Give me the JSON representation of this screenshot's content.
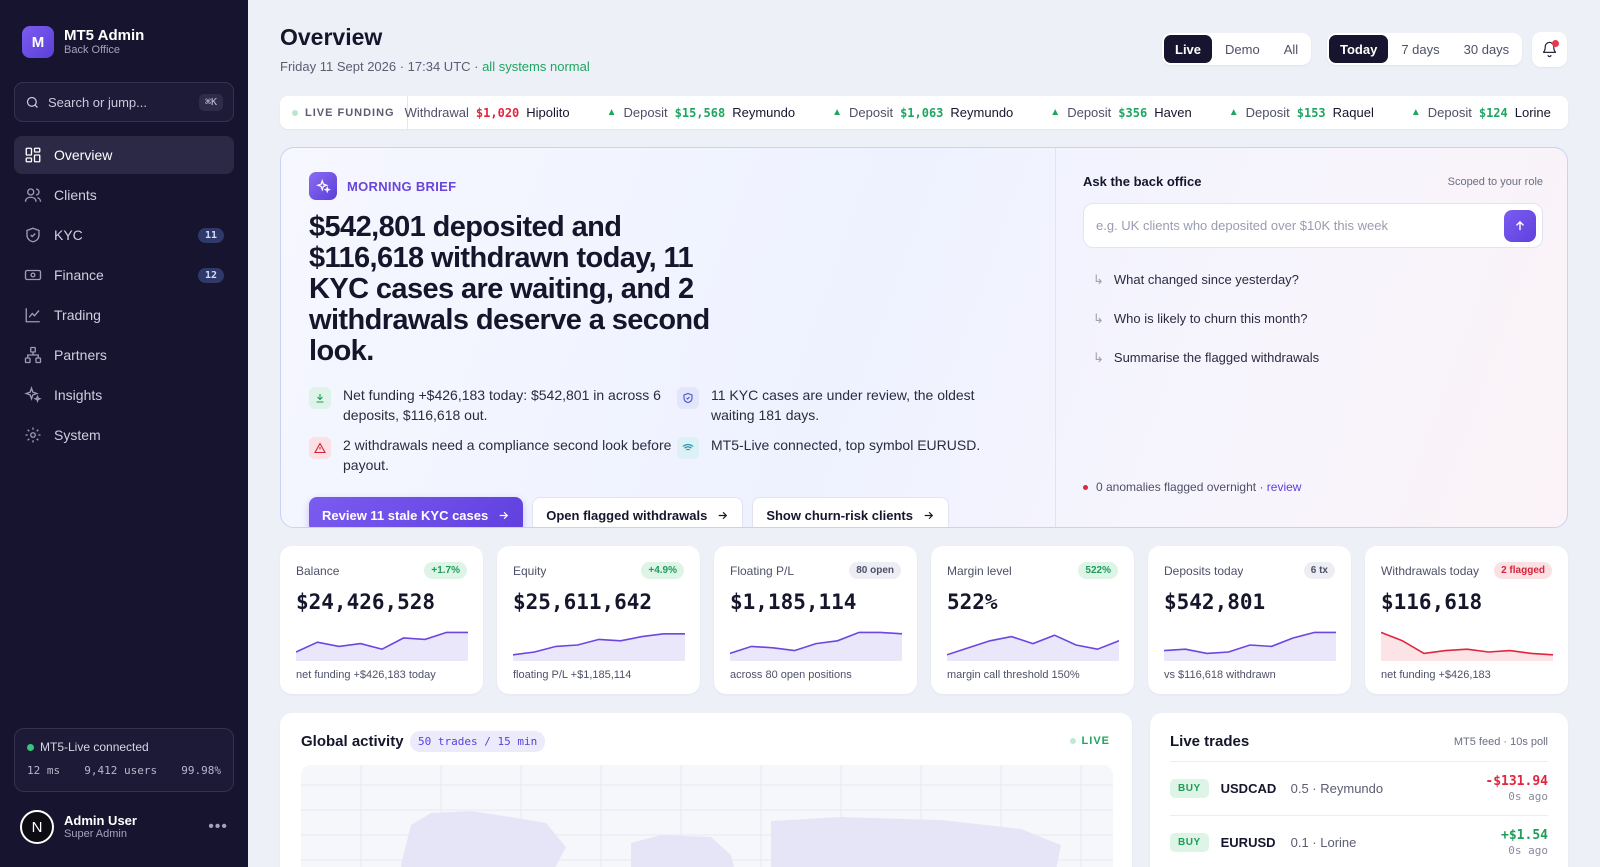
{
  "brand": {
    "logo_letter": "M",
    "title": "MT5 Admin",
    "subtitle": "Back Office"
  },
  "search": {
    "placeholder": "Search or jump...",
    "shortcut": "⌘K"
  },
  "nav": [
    {
      "label": "Overview",
      "icon": "grid-icon",
      "active": true
    },
    {
      "label": "Clients",
      "icon": "users-icon"
    },
    {
      "label": "KYC",
      "icon": "shield-icon",
      "count": "11"
    },
    {
      "label": "Finance",
      "icon": "banknote-icon",
      "count": "12"
    },
    {
      "label": "Trading",
      "icon": "chart-line-icon"
    },
    {
      "label": "Partners",
      "icon": "network-icon"
    },
    {
      "label": "Insights",
      "icon": "sparkles-icon"
    },
    {
      "label": "System",
      "icon": "gear-icon"
    }
  ],
  "connection": {
    "status": "MT5-Live connected",
    "latency": "12 ms",
    "users": "9,412 users",
    "uptime": "99.98%"
  },
  "user": {
    "initial": "N",
    "name": "Admin User",
    "role": "Super Admin"
  },
  "header": {
    "title": "Overview",
    "date": "Friday 11 Sept 2026 · 17:34 UTC · ",
    "status": "all systems normal",
    "env_options": [
      "Live",
      "Demo",
      "All"
    ],
    "env_selected": "Live",
    "range_options": [
      "Today",
      "7 days",
      "30 days"
    ],
    "range_selected": "Today"
  },
  "ticker": {
    "label": "LIVE FUNDING",
    "items": [
      {
        "type": "Withdrawal",
        "amount": "$1,020",
        "name": "Hipolito",
        "direction": "out"
      },
      {
        "type": "Deposit",
        "amount": "$15,568",
        "name": "Reymundo",
        "direction": "in"
      },
      {
        "type": "Deposit",
        "amount": "$1,063",
        "name": "Reymundo",
        "direction": "in"
      },
      {
        "type": "Deposit",
        "amount": "$356",
        "name": "Haven",
        "direction": "in"
      },
      {
        "type": "Deposit",
        "amount": "$153",
        "name": "Raquel",
        "direction": "in"
      },
      {
        "type": "Deposit",
        "amount": "$124",
        "name": "Lorine",
        "direction": "in"
      }
    ]
  },
  "brief": {
    "tag": "MORNING BRIEF",
    "headline": "$542,801 deposited and $116,618 withdrawn today, 11 KYC cases are waiting, and 2 withdrawals deserve a second look.",
    "points": [
      {
        "icon": "download-icon",
        "tone": "green",
        "text": "Net funding +$426,183 today: $542,801 in across 6 deposits, $116,618 out."
      },
      {
        "icon": "shield-icon",
        "tone": "blue",
        "text": "11 KYC cases are under review, the oldest waiting 181 days."
      },
      {
        "icon": "alert-triangle-icon",
        "tone": "red",
        "text": "2 withdrawals need a compliance second look before payout."
      },
      {
        "icon": "wifi-icon",
        "tone": "teal",
        "text": "MT5-Live connected, top symbol EURUSD."
      }
    ],
    "actions": [
      {
        "label": "Review 11 stale KYC cases",
        "primary": true
      },
      {
        "label": "Open flagged withdrawals",
        "primary": false
      },
      {
        "label": "Show churn-risk clients",
        "primary": false
      }
    ]
  },
  "ask": {
    "title": "Ask the back office",
    "scope": "Scoped to your role",
    "placeholder": "e.g. UK clients who deposited over $10K this week",
    "suggestions": [
      "What changed since yesterday?",
      "Who is likely to churn this month?",
      "Summarise the flagged withdrawals"
    ],
    "anomalies": "0 anomalies flagged overnight · ",
    "anomalies_link": "review"
  },
  "kpis": [
    {
      "label": "Balance",
      "chip": "+1.7%",
      "chip_tone": "green",
      "value": "$24,426,528",
      "note": "net funding +$426,183 today",
      "spark": [
        0.25,
        0.6,
        0.45,
        0.55,
        0.35,
        0.75,
        0.7,
        0.95,
        0.95
      ],
      "spark_color": "#6b46e0",
      "spark_fill": "#ebe7fb"
    },
    {
      "label": "Equity",
      "chip": "+4.9%",
      "chip_tone": "green",
      "value": "$25,611,642",
      "note": "floating P/L +$1,185,114",
      "spark": [
        0.15,
        0.25,
        0.45,
        0.5,
        0.7,
        0.65,
        0.8,
        0.9,
        0.9
      ],
      "spark_color": "#6b46e0",
      "spark_fill": "#ebe7fb"
    },
    {
      "label": "Floating P/L",
      "chip": "80 open",
      "chip_tone": "gray",
      "value": "$1,185,114",
      "note": "across 80 open positions",
      "spark": [
        0.2,
        0.45,
        0.4,
        0.3,
        0.55,
        0.65,
        0.95,
        0.95,
        0.9
      ],
      "spark_color": "#6b46e0",
      "spark_fill": "#ebe7fb"
    },
    {
      "label": "Margin level",
      "chip": "522%",
      "chip_tone": "green",
      "value": "522%",
      "note": "margin call threshold 150%",
      "spark": [
        0.15,
        0.4,
        0.65,
        0.8,
        0.55,
        0.85,
        0.5,
        0.35,
        0.65
      ],
      "spark_color": "#6b46e0",
      "spark_fill": "#ebe7fb"
    },
    {
      "label": "Deposits today",
      "chip": "6 tx",
      "chip_tone": "gray",
      "value": "$542,801",
      "note": "vs $116,618 withdrawn",
      "spark": [
        0.3,
        0.35,
        0.2,
        0.25,
        0.5,
        0.45,
        0.75,
        0.95,
        0.95
      ],
      "spark_color": "#6b46e0",
      "spark_fill": "#ebe7fb"
    },
    {
      "label": "Withdrawals today",
      "chip": "2 flagged",
      "chip_tone": "red",
      "value": "$116,618",
      "note": "net funding +$426,183",
      "spark": [
        0.95,
        0.65,
        0.2,
        0.3,
        0.35,
        0.25,
        0.3,
        0.2,
        0.15
      ],
      "spark_color": "#e0263f",
      "spark_fill": "#fbe3e6"
    }
  ],
  "activity": {
    "title": "Global activity",
    "chip": "50 trades / 15 min",
    "live": "LIVE"
  },
  "trades": {
    "title": "Live trades",
    "feed": "MT5 feed · 10s poll",
    "rows": [
      {
        "side": "BUY",
        "symbol": "USDCAD",
        "meta": "0.5 · Reymundo",
        "pnl": "-$131.94",
        "sign": "neg",
        "ago": "0s ago"
      },
      {
        "side": "BUY",
        "symbol": "EURUSD",
        "meta": "0.1 · Lorine",
        "pnl": "+$1.54",
        "sign": "pos",
        "ago": "0s ago"
      }
    ]
  }
}
